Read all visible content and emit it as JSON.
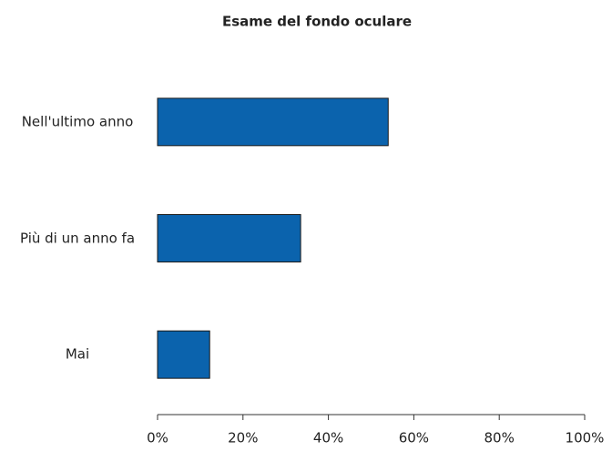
{
  "chart_data": {
    "type": "bar",
    "orientation": "horizontal",
    "title": "Esame del fondo oculare",
    "categories": [
      "Nell'ultimo anno",
      "Più di un anno fa",
      "Mai"
    ],
    "values": [
      54,
      33.5,
      12.2
    ],
    "color": "#0b63ad",
    "xlim": [
      0,
      100
    ],
    "xticks": [
      {
        "value": 0,
        "label": "0%"
      },
      {
        "value": 20,
        "label": "20%"
      },
      {
        "value": 40,
        "label": "40%"
      },
      {
        "value": 60,
        "label": "60%"
      },
      {
        "value": 80,
        "label": "80%"
      },
      {
        "value": 100,
        "label": "100%"
      }
    ],
    "grid": false
  }
}
